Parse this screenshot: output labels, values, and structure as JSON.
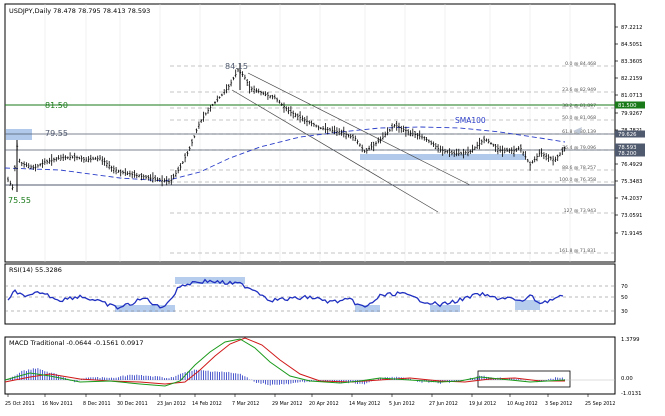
{
  "main_chart": {
    "title": "USDJPY,Daily  78.478 78.795 78.413 78.593",
    "price_axis_labels": [
      "87.2212",
      "84.5051",
      "83.3605",
      "82.2159",
      "81.0713",
      "79.9267",
      "78.7821",
      "77.6375",
      "76.4929",
      "75.3483",
      "74.2037",
      "73.0591",
      "71.9145"
    ],
    "fib_labels": [
      "0.0 @ 84.468",
      "23.6 @ 82.949",
      "38.2 @ 81.897",
      "50.0 @ 81.068",
      "61.8 @ 80.139",
      "76.4 @ 79.096",
      "88.6 @ 78.257",
      "100.0 @ 76.358",
      "127 @ 73.943",
      "161.8 @ 71.831"
    ],
    "level_labels": {
      "l8150": "81.50",
      "l7955": "79.55",
      "l7555": "75.55",
      "l8415": "84.15",
      "sma": "SMA100"
    },
    "price_tags": [
      {
        "value": "81.500",
        "color": "#1a7a1a"
      },
      {
        "value": "79.626",
        "color": "#505a6e"
      },
      {
        "value": "78.593",
        "color": "#505a6e"
      },
      {
        "value": "78.200",
        "color": "#505a6e"
      }
    ],
    "date_labels": [
      "25 Oct 2011",
      "16 Nov 2011",
      "8 Dec 2011",
      "30 Dec 2011",
      "23 Jan 2012",
      "14 Feb 2012",
      "7 Mar 2012",
      "29 Mar 2012",
      "20 Apr 2012",
      "14 May 2012",
      "5 Jun 2012",
      "27 Jun 2012",
      "19 Jul 2012",
      "10 Aug 2012",
      "3 Sep 2012",
      "25 Sep 2012"
    ]
  },
  "rsi": {
    "title": "RSI(14) 55.3286",
    "levels": [
      "70",
      "50",
      "30"
    ]
  },
  "macd": {
    "title": "MACD Traditional -0.0644 -0.1561 0.0917",
    "levels": [
      "1.3799",
      "0.00",
      "-1.0131"
    ]
  },
  "colors": {
    "background": "#ffffff",
    "candle": "#000000",
    "green_line": "#1a7a1a",
    "dark_line": "#505a6e",
    "sma": "#2b3ec8",
    "rsi": "#1f2fbf",
    "macd_red": "#d01818",
    "macd_green": "#1a9a1a",
    "hist": "#1f2fbf",
    "highlight": "#a9c4ea"
  }
}
